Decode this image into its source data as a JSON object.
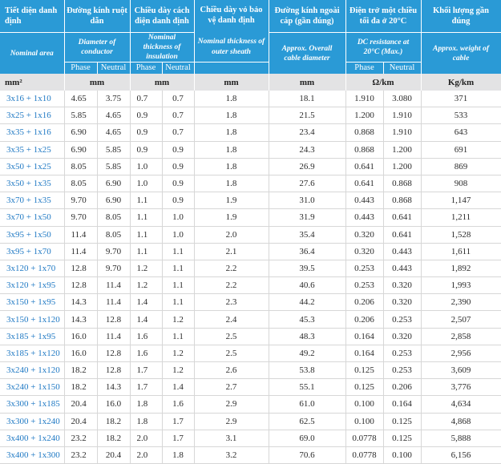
{
  "header": {
    "nominal_area_vi": "Tiết diện danh định",
    "nominal_area_en": "Nominal area",
    "diameter_vi": "Đường kính ruột dẫn",
    "diameter_en": "Diameter of conductor",
    "insulation_vi": "Chiều dày cách điện danh định",
    "insulation_en": "Nominal thickness of insulation",
    "sheath_vi": "Chiều dày vỏ bảo vệ danh định",
    "sheath_en": "Nominal thickness of outer sheath",
    "overall_vi": "Đường kính ngoài cáp (gần đúng)",
    "overall_en": "Approx. Overall cable diameter",
    "resistance_vi": "Điện trở một chiều tối đa ở 20°C",
    "resistance_en": "DC resistance at 20°C (Max.)",
    "weight_vi": "Khối lượng gần đúng",
    "weight_en": "Approx. weight of cable",
    "phase": "Phase",
    "neutral": "Neutral"
  },
  "units": {
    "area": "mm²",
    "diameter": "mm",
    "insulation": "mm",
    "sheath": "mm",
    "overall": "mm",
    "resistance": "Ω/km",
    "weight": "Kg/km"
  },
  "rows": [
    [
      "3x16 + 1x10",
      "4.65",
      "3.75",
      "0.7",
      "0.7",
      "1.8",
      "18.1",
      "1.910",
      "3.080",
      "371"
    ],
    [
      "3x25 + 1x16",
      "5.85",
      "4.65",
      "0.9",
      "0.7",
      "1.8",
      "21.5",
      "1.200",
      "1.910",
      "533"
    ],
    [
      "3x35 + 1x16",
      "6.90",
      "4.65",
      "0.9",
      "0.7",
      "1.8",
      "23.4",
      "0.868",
      "1.910",
      "643"
    ],
    [
      "3x35 + 1x25",
      "6.90",
      "5.85",
      "0.9",
      "0.9",
      "1.8",
      "24.3",
      "0.868",
      "1.200",
      "691"
    ],
    [
      "3x50 + 1x25",
      "8.05",
      "5.85",
      "1.0",
      "0.9",
      "1.8",
      "26.9",
      "0.641",
      "1.200",
      "869"
    ],
    [
      "3x50 + 1x35",
      "8.05",
      "6.90",
      "1.0",
      "0.9",
      "1.8",
      "27.6",
      "0.641",
      "0.868",
      "908"
    ],
    [
      "3x70 + 1x35",
      "9.70",
      "6.90",
      "1.1",
      "0.9",
      "1.9",
      "31.0",
      "0.443",
      "0.868",
      "1,147"
    ],
    [
      "3x70 + 1x50",
      "9.70",
      "8.05",
      "1.1",
      "1.0",
      "1.9",
      "31.9",
      "0.443",
      "0.641",
      "1,211"
    ],
    [
      "3x95 + 1x50",
      "11.4",
      "8.05",
      "1.1",
      "1.0",
      "2.0",
      "35.4",
      "0.320",
      "0.641",
      "1,528"
    ],
    [
      "3x95 + 1x70",
      "11.4",
      "9.70",
      "1.1",
      "1.1",
      "2.1",
      "36.4",
      "0.320",
      "0.443",
      "1,611"
    ],
    [
      "3x120 + 1x70",
      "12.8",
      "9.70",
      "1.2",
      "1.1",
      "2.2",
      "39.5",
      "0.253",
      "0.443",
      "1,892"
    ],
    [
      "3x120 + 1x95",
      "12.8",
      "11.4",
      "1.2",
      "1.1",
      "2.2",
      "40.6",
      "0.253",
      "0.320",
      "1,993"
    ],
    [
      "3x150 + 1x95",
      "14.3",
      "11.4",
      "1.4",
      "1.1",
      "2.3",
      "44.2",
      "0.206",
      "0.320",
      "2,390"
    ],
    [
      "3x150 + 1x120",
      "14.3",
      "12.8",
      "1.4",
      "1.2",
      "2.4",
      "45.3",
      "0.206",
      "0.253",
      "2,507"
    ],
    [
      "3x185 + 1x95",
      "16.0",
      "11.4",
      "1.6",
      "1.1",
      "2.5",
      "48.3",
      "0.164",
      "0.320",
      "2,858"
    ],
    [
      "3x185 + 1x120",
      "16.0",
      "12.8",
      "1.6",
      "1.2",
      "2.5",
      "49.2",
      "0.164",
      "0.253",
      "2,956"
    ],
    [
      "3x240 + 1x120",
      "18.2",
      "12.8",
      "1.7",
      "1.2",
      "2.6",
      "53.8",
      "0.125",
      "0.253",
      "3,609"
    ],
    [
      "3x240 + 1x150",
      "18.2",
      "14.3",
      "1.7",
      "1.4",
      "2.7",
      "55.1",
      "0.125",
      "0.206",
      "3,776"
    ],
    [
      "3x300 + 1x185",
      "20.4",
      "16.0",
      "1.8",
      "1.6",
      "2.9",
      "61.0",
      "0.100",
      "0.164",
      "4,634"
    ],
    [
      "3x300 + 1x240",
      "20.4",
      "18.2",
      "1.8",
      "1.7",
      "2.9",
      "62.5",
      "0.100",
      "0.125",
      "4,868"
    ],
    [
      "3x400 + 1x240",
      "23.2",
      "18.2",
      "2.0",
      "1.7",
      "3.1",
      "69.0",
      "0.0778",
      "0.125",
      "5,888"
    ],
    [
      "3x400 + 1x300",
      "23.2",
      "20.4",
      "2.0",
      "1.8",
      "3.2",
      "70.6",
      "0.0778",
      "0.100",
      "6,156"
    ]
  ]
}
